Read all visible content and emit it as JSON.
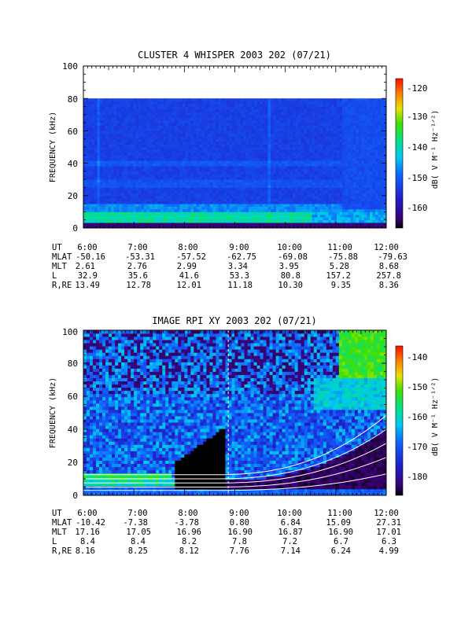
{
  "page": {
    "background": "#ffffff"
  },
  "chart_data": [
    {
      "type": "heatmap",
      "title": "CLUSTER 4 WHISPER 2003 202 (07/21)",
      "ylabel": "FREQUENCY (kHz)",
      "ylim": [
        0,
        100
      ],
      "yticks": [
        "0",
        "20",
        "40",
        "60",
        "80",
        "100"
      ],
      "data_ylim": [
        0,
        80
      ],
      "xlim_hours": [
        6,
        12
      ],
      "colorbar": {
        "label": "dB( V M⁻¹ Hz⁻¹ᐟ²)",
        "ticks": [
          "-120",
          "-130",
          "-140",
          "-150",
          "-160"
        ],
        "tick_values": [
          -120,
          -130,
          -140,
          -150,
          -160
        ],
        "range": [
          -166,
          -117
        ]
      },
      "ephemeris": {
        "labels": [
          "UT",
          "MLAT",
          "MLT",
          "L",
          "R,RE"
        ],
        "UT": [
          "6:00",
          "7:00",
          "8:00",
          "9:00",
          "10:00",
          "11:00",
          "12:00"
        ],
        "MLAT": [
          "-50.16",
          "-53.31",
          "-57.52",
          "-62.75",
          "-69.08",
          "-75.88",
          "-79.63"
        ],
        "MLT": [
          "2.61",
          "2.76",
          "2.99",
          "3.34",
          "3.95",
          "5.28",
          "8.68"
        ],
        "L": [
          "32.9",
          "35.6",
          "41.6",
          "53.3",
          "80.8",
          "157.2",
          "257.8"
        ],
        "R,RE": [
          "13.49",
          "12.78",
          "12.01",
          "11.18",
          "10.30",
          "9.35",
          "8.36"
        ]
      }
    },
    {
      "type": "heatmap",
      "title": "IMAGE RPI XY 2003 202 (07/21)",
      "ylabel": "FREQUENCY (kHz)",
      "ylim": [
        0,
        100
      ],
      "yticks": [
        "0",
        "20",
        "40",
        "60",
        "80",
        "100"
      ],
      "xlim_hours": [
        6,
        12
      ],
      "colorbar": {
        "label": "dB( V M⁻¹ Hz⁻¹ᐟ²)",
        "ticks": [
          "-140",
          "-150",
          "-160",
          "-170",
          "-180"
        ],
        "tick_values": [
          -140,
          -150,
          -160,
          -170,
          -180
        ],
        "range": [
          -185,
          -135
        ]
      },
      "ephemeris": {
        "labels": [
          "UT",
          "MLAT",
          "MLT",
          "L",
          "R,RE"
        ],
        "UT": [
          "6:00",
          "7:00",
          "8:00",
          "9:00",
          "10:00",
          "11:00",
          "12:00"
        ],
        "MLAT": [
          "-10.42",
          "-7.38",
          "-3.78",
          "0.80",
          "6.84",
          "15.09",
          "27.31"
        ],
        "MLT": [
          "17.16",
          "17.05",
          "16.96",
          "16.90",
          "16.87",
          "16.90",
          "17.01"
        ],
        "L": [
          "8.4",
          "8.4",
          "8.2",
          "7.8",
          "7.2",
          "6.7",
          "6.3"
        ],
        "R,RE": [
          "8.16",
          "8.25",
          "8.12",
          "7.76",
          "7.14",
          "6.24",
          "4.99"
        ]
      }
    }
  ]
}
